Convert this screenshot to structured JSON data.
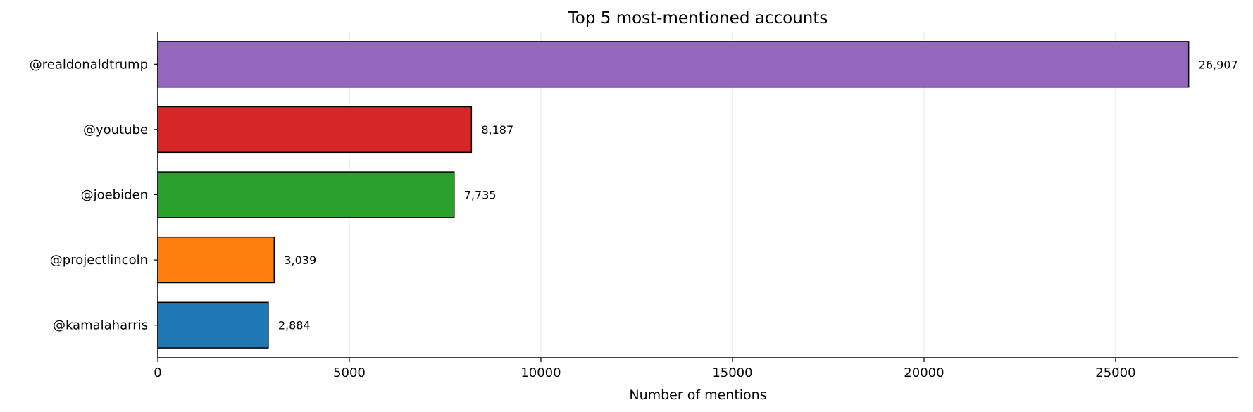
{
  "chart_data": {
    "type": "bar",
    "orientation": "horizontal",
    "title": "Top 5 most-mentioned accounts",
    "xlabel": "Number of mentions",
    "ylabel": "",
    "xlim": [
      0,
      28200
    ],
    "xticks": [
      0,
      5000,
      10000,
      15000,
      20000,
      25000
    ],
    "grid": "vertical",
    "categories": [
      "@realdonaldtrump",
      "@youtube",
      "@joebiden",
      "@projectlincoln",
      "@kamalaharris"
    ],
    "values": [
      26907,
      8187,
      7735,
      3039,
      2884
    ],
    "value_labels": [
      "26,907",
      "8,187",
      "7,735",
      "3,039",
      "2,884"
    ],
    "colors": [
      "#9467bd",
      "#d62728",
      "#2ca02c",
      "#ff7f0e",
      "#1f77b4"
    ]
  }
}
